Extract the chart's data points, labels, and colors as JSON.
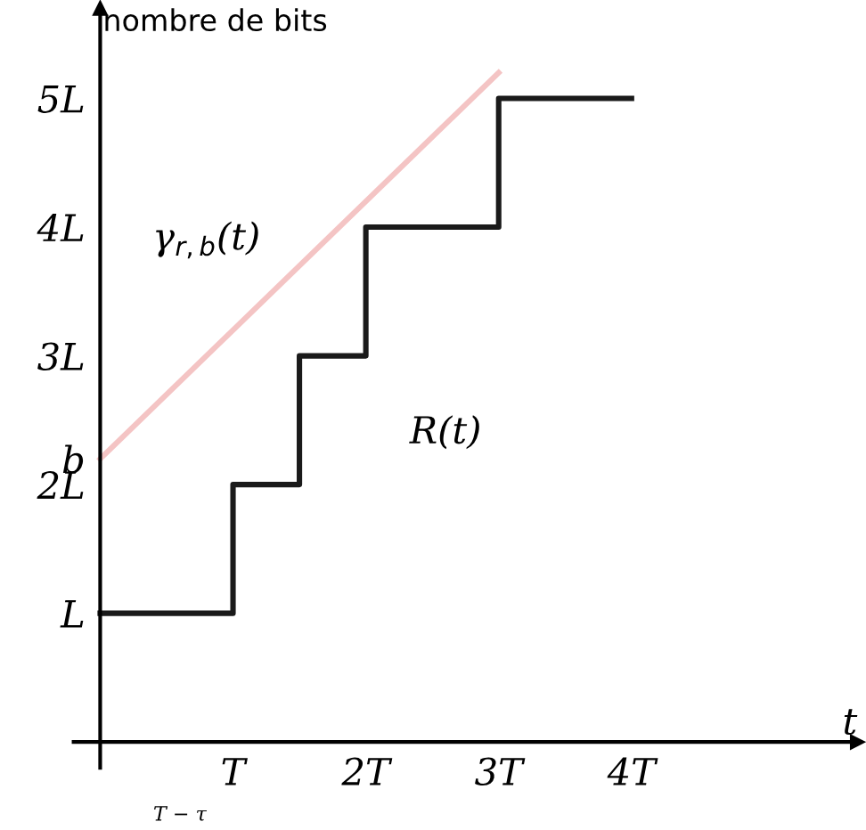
{
  "chart_data": {
    "type": "step",
    "xlabel": "t",
    "ylabel": "nombre de bits",
    "xlim": [
      -0.2,
      5.7
    ],
    "ylim": [
      -0.2,
      5.7
    ],
    "xticks": [
      {
        "value": 1,
        "label": "T"
      },
      {
        "value": 2,
        "label": "2T"
      },
      {
        "value": 3,
        "label": "3T"
      },
      {
        "value": 4,
        "label": "4T"
      }
    ],
    "yticks": [
      {
        "value": 1,
        "label": "L"
      },
      {
        "value": 2,
        "label": "2L"
      },
      {
        "value": 2.2,
        "label": "b"
      },
      {
        "value": 3,
        "label": "3L"
      },
      {
        "value": 4,
        "label": "4L"
      },
      {
        "value": 5,
        "label": "5L"
      }
    ],
    "series": [
      {
        "name": "R(t)",
        "color": "#1a1a1a",
        "x": [
          0,
          1,
          1.5,
          2,
          3,
          4
        ],
        "values": [
          1,
          2,
          3,
          4,
          5,
          5
        ]
      },
      {
        "name": "γ$_{r,b}$(t)",
        "type": "line",
        "color": "#f4c4c4",
        "x": [
          0,
          3
        ],
        "values": [
          2.2,
          5.2
        ]
      }
    ],
    "annotations": [
      "T − τ"
    ],
    "grid": false,
    "legend": false
  }
}
